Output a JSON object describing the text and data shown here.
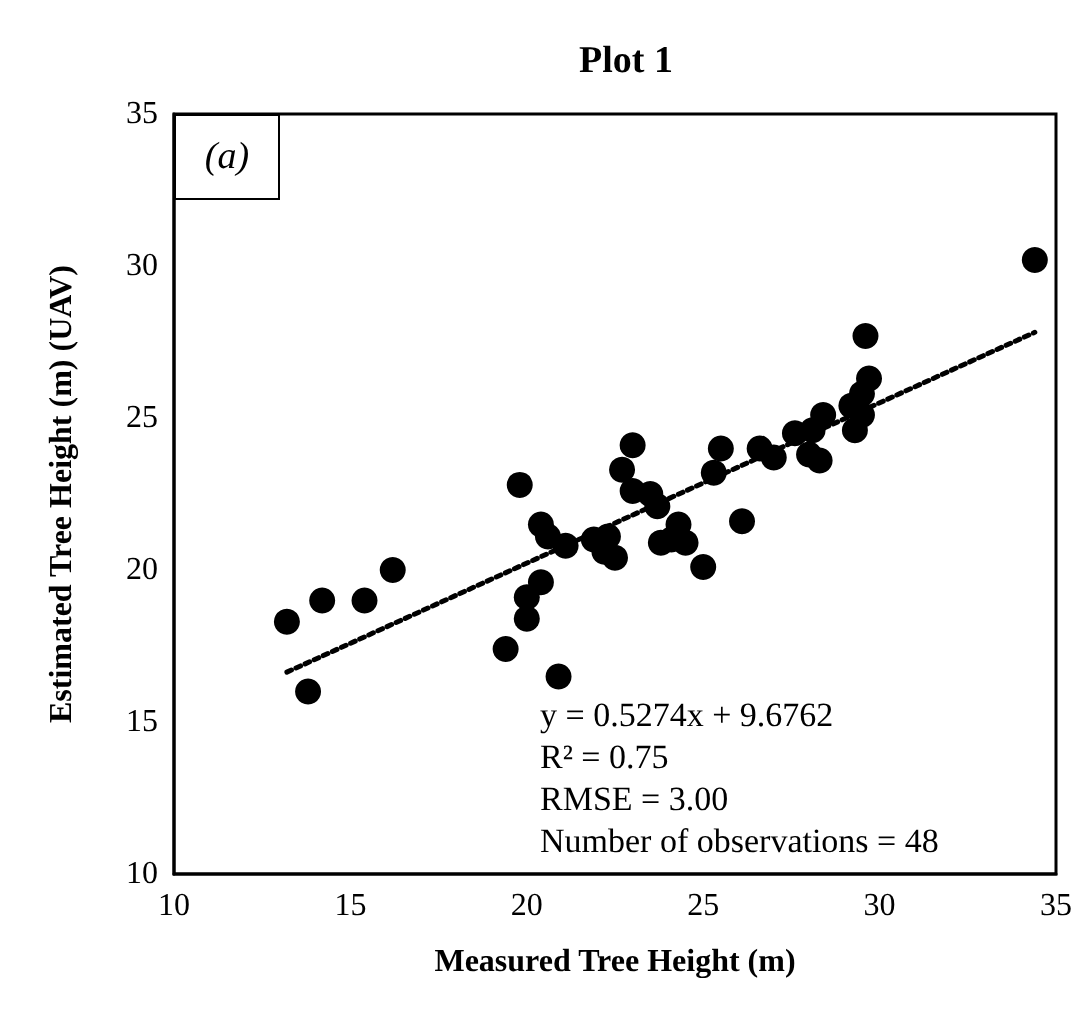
{
  "chart_data": {
    "type": "scatter",
    "title": "Plot 1",
    "xlabel": "Measured Tree Height (m)",
    "ylabel": "Estimated Tree Height (m) (UAV)",
    "xlim": [
      10,
      35
    ],
    "xticks": [
      10,
      15,
      20,
      25,
      30,
      35
    ],
    "ylim": [
      10,
      35
    ],
    "yticks": [
      10,
      15,
      20,
      25,
      30,
      35
    ],
    "grid": false,
    "marker": "circle",
    "annotations": [
      "(a)",
      "y = 0.5274x + 9.6762",
      "R² = 0.75",
      "RMSE = 3.00",
      "Number of observations = 48"
    ],
    "series": [
      {
        "color": "#000000",
        "x": [
          34.4,
          29.6,
          29.7,
          29.5,
          29.2,
          29.5,
          29.3,
          28.4,
          28.1,
          27.6,
          28.0,
          28.3,
          26.6,
          27.0,
          25.5,
          25.3,
          23.0,
          22.7,
          19.8,
          23.0,
          23.5,
          23.7,
          26.1,
          20.4,
          20.6,
          21.1,
          21.9,
          22.3,
          22.2,
          22.5,
          23.8,
          24.3,
          24.5,
          24.1,
          25.0,
          16.2,
          15.4,
          14.2,
          13.2,
          20.4,
          20.0,
          20.0,
          19.4,
          20.9,
          13.8
        ],
        "values": [
          30.2,
          27.7,
          26.3,
          25.8,
          25.4,
          25.1,
          24.6,
          25.1,
          24.6,
          24.5,
          23.8,
          23.6,
          24.0,
          23.7,
          24.0,
          23.2,
          24.1,
          23.3,
          22.8,
          22.6,
          22.5,
          22.1,
          21.6,
          21.5,
          21.1,
          20.8,
          21.0,
          21.1,
          20.6,
          20.4,
          20.9,
          21.5,
          20.9,
          21.0,
          20.1,
          20.0,
          19.0,
          19.0,
          18.3,
          19.6,
          19.1,
          18.4,
          17.4,
          16.5,
          16.0
        ]
      },
      {
        "type": "line",
        "color": "#000000",
        "line_style": "dotted",
        "marker": "none",
        "x": [
          13.2,
          34.4
        ],
        "values": [
          16.64,
          27.82
        ]
      }
    ]
  }
}
